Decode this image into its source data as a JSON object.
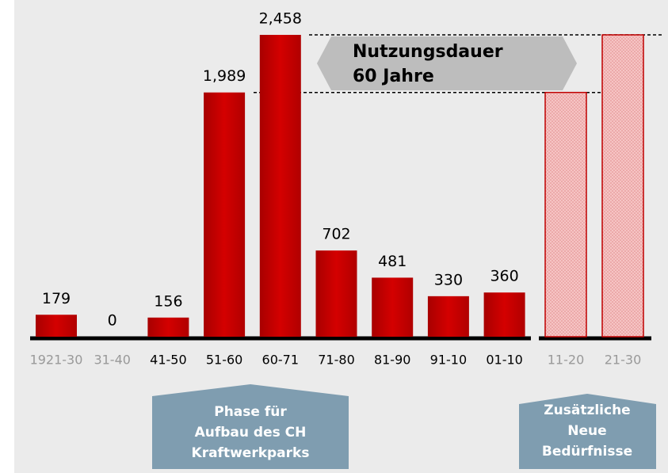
{
  "chart_data": {
    "type": "bar",
    "categories": [
      "1921-30",
      "31-40",
      "41-50",
      "51-60",
      "60-71",
      "71-80",
      "81-90",
      "91-10",
      "01-10",
      "11-20",
      "21-30"
    ],
    "values": [
      179,
      0,
      156,
      1989,
      2458,
      702,
      481,
      330,
      360,
      1989,
      2458
    ],
    "value_labels": [
      "179",
      "0",
      "156",
      "1,989",
      "2,458",
      "702",
      "481",
      "330",
      "360",
      null,
      null
    ],
    "bar_styles": [
      "solid",
      "solid",
      "solid",
      "solid",
      "solid",
      "solid",
      "solid",
      "solid",
      "solid",
      "hatched",
      "hatched"
    ],
    "category_label_colors": [
      "#999999",
      "#999999",
      "#000000",
      "#000000",
      "#000000",
      "#000000",
      "#000000",
      "#000000",
      "#000000",
      "#999999",
      "#999999"
    ],
    "color": "#c00000",
    "ylim": [
      0,
      2458
    ],
    "annotations": {
      "lifetime": [
        "Nutzungsdauer",
        "60 Jahre"
      ],
      "phase": [
        "Phase für",
        "Aufbau des CH",
        "Kraftwerkparks"
      ],
      "additional": [
        "Zusätzliche",
        "Neue",
        "Bedürfnisse"
      ]
    }
  }
}
